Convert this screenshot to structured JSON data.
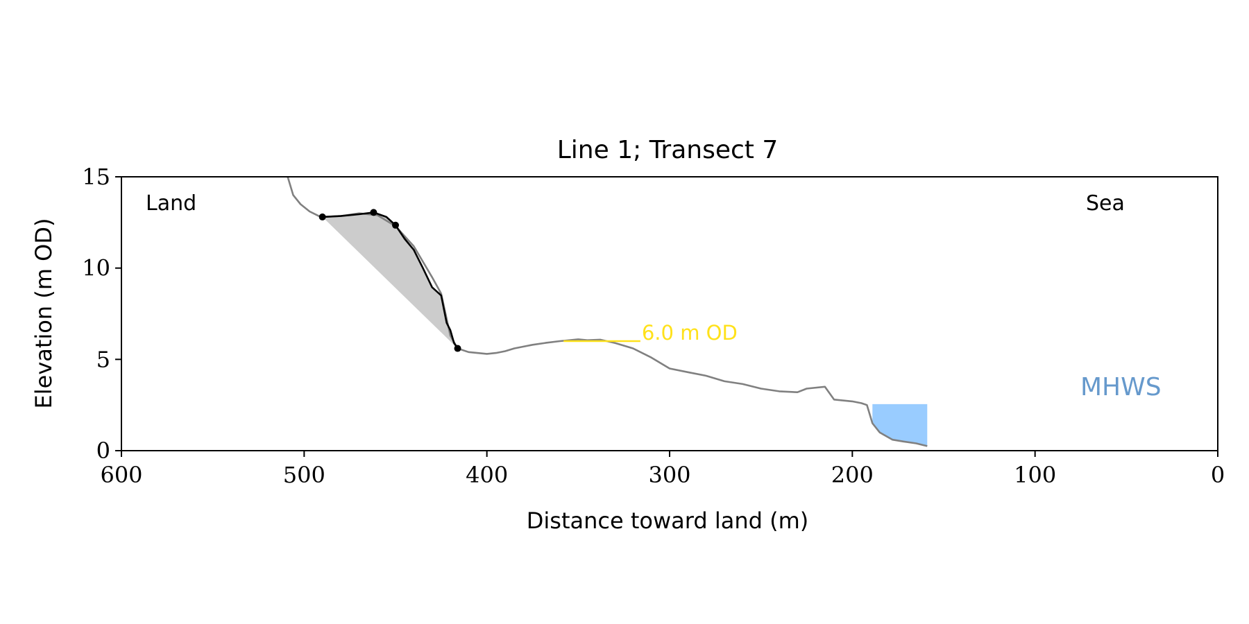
{
  "chart_data": {
    "type": "line",
    "title": "Line 1; Transect 7",
    "xlabel": "Distance toward land (m)",
    "ylabel": "Elevation (m OD)",
    "xlim": [
      600,
      0
    ],
    "ylim": [
      0,
      15
    ],
    "x_ticks": [
      600,
      500,
      400,
      300,
      200,
      100,
      0
    ],
    "y_ticks": [
      0,
      5,
      10,
      15
    ],
    "grid": false,
    "annotations": {
      "land": "Land",
      "sea": "Sea",
      "od_label": "6.0 m OD",
      "mhws_label": "MHWS"
    },
    "od_line": {
      "level": 6.0,
      "x_start": 358,
      "x_end": 316
    },
    "series": [
      {
        "role": "profile",
        "color": "#808080",
        "x": [
          509,
          506,
          502,
          497,
          492,
          490,
          480,
          470,
          460,
          450,
          440,
          430,
          425,
          420,
          416,
          410,
          400,
          395,
          390,
          385,
          375,
          368,
          360,
          350,
          345,
          338,
          330,
          320,
          310,
          300,
          290,
          280,
          270,
          260,
          250,
          240,
          230,
          225,
          215,
          210,
          200,
          195,
          192,
          189,
          185,
          178,
          172,
          165,
          161,
          159
        ],
        "y": [
          15.0,
          14.0,
          13.5,
          13.1,
          12.85,
          12.8,
          12.85,
          13.0,
          12.9,
          12.3,
          11.2,
          9.5,
          8.6,
          6.3,
          5.6,
          5.4,
          5.3,
          5.35,
          5.45,
          5.6,
          5.8,
          5.9,
          6.0,
          6.1,
          6.05,
          6.08,
          5.9,
          5.6,
          5.1,
          4.5,
          4.3,
          4.1,
          3.8,
          3.65,
          3.4,
          3.25,
          3.2,
          3.4,
          3.5,
          2.8,
          2.7,
          2.6,
          2.5,
          1.5,
          1.0,
          0.6,
          0.5,
          0.4,
          0.3,
          0.25
        ]
      },
      {
        "role": "cliff",
        "color": "#000000",
        "x": [
          490,
          480,
          470,
          462,
          455,
          450,
          445,
          440,
          435,
          430,
          425,
          422,
          420,
          418,
          416
        ],
        "y": [
          12.8,
          12.85,
          12.95,
          13.05,
          12.8,
          12.35,
          11.6,
          11.0,
          10.0,
          8.95,
          8.5,
          7.0,
          6.6,
          5.9,
          5.6
        ]
      }
    ],
    "markers": {
      "x": [
        490,
        462,
        450,
        416
      ],
      "y": [
        12.8,
        13.05,
        12.35,
        5.6
      ]
    },
    "colors": {
      "profile": "#808080",
      "cliff": "#000000",
      "cliff_fill": "#cccccc",
      "od_line": "#ffe11a",
      "mhws": "#6699cc",
      "water": "#99ccff"
    },
    "water": {
      "level": 2.55,
      "x_start": 189,
      "x_end": 159
    }
  }
}
